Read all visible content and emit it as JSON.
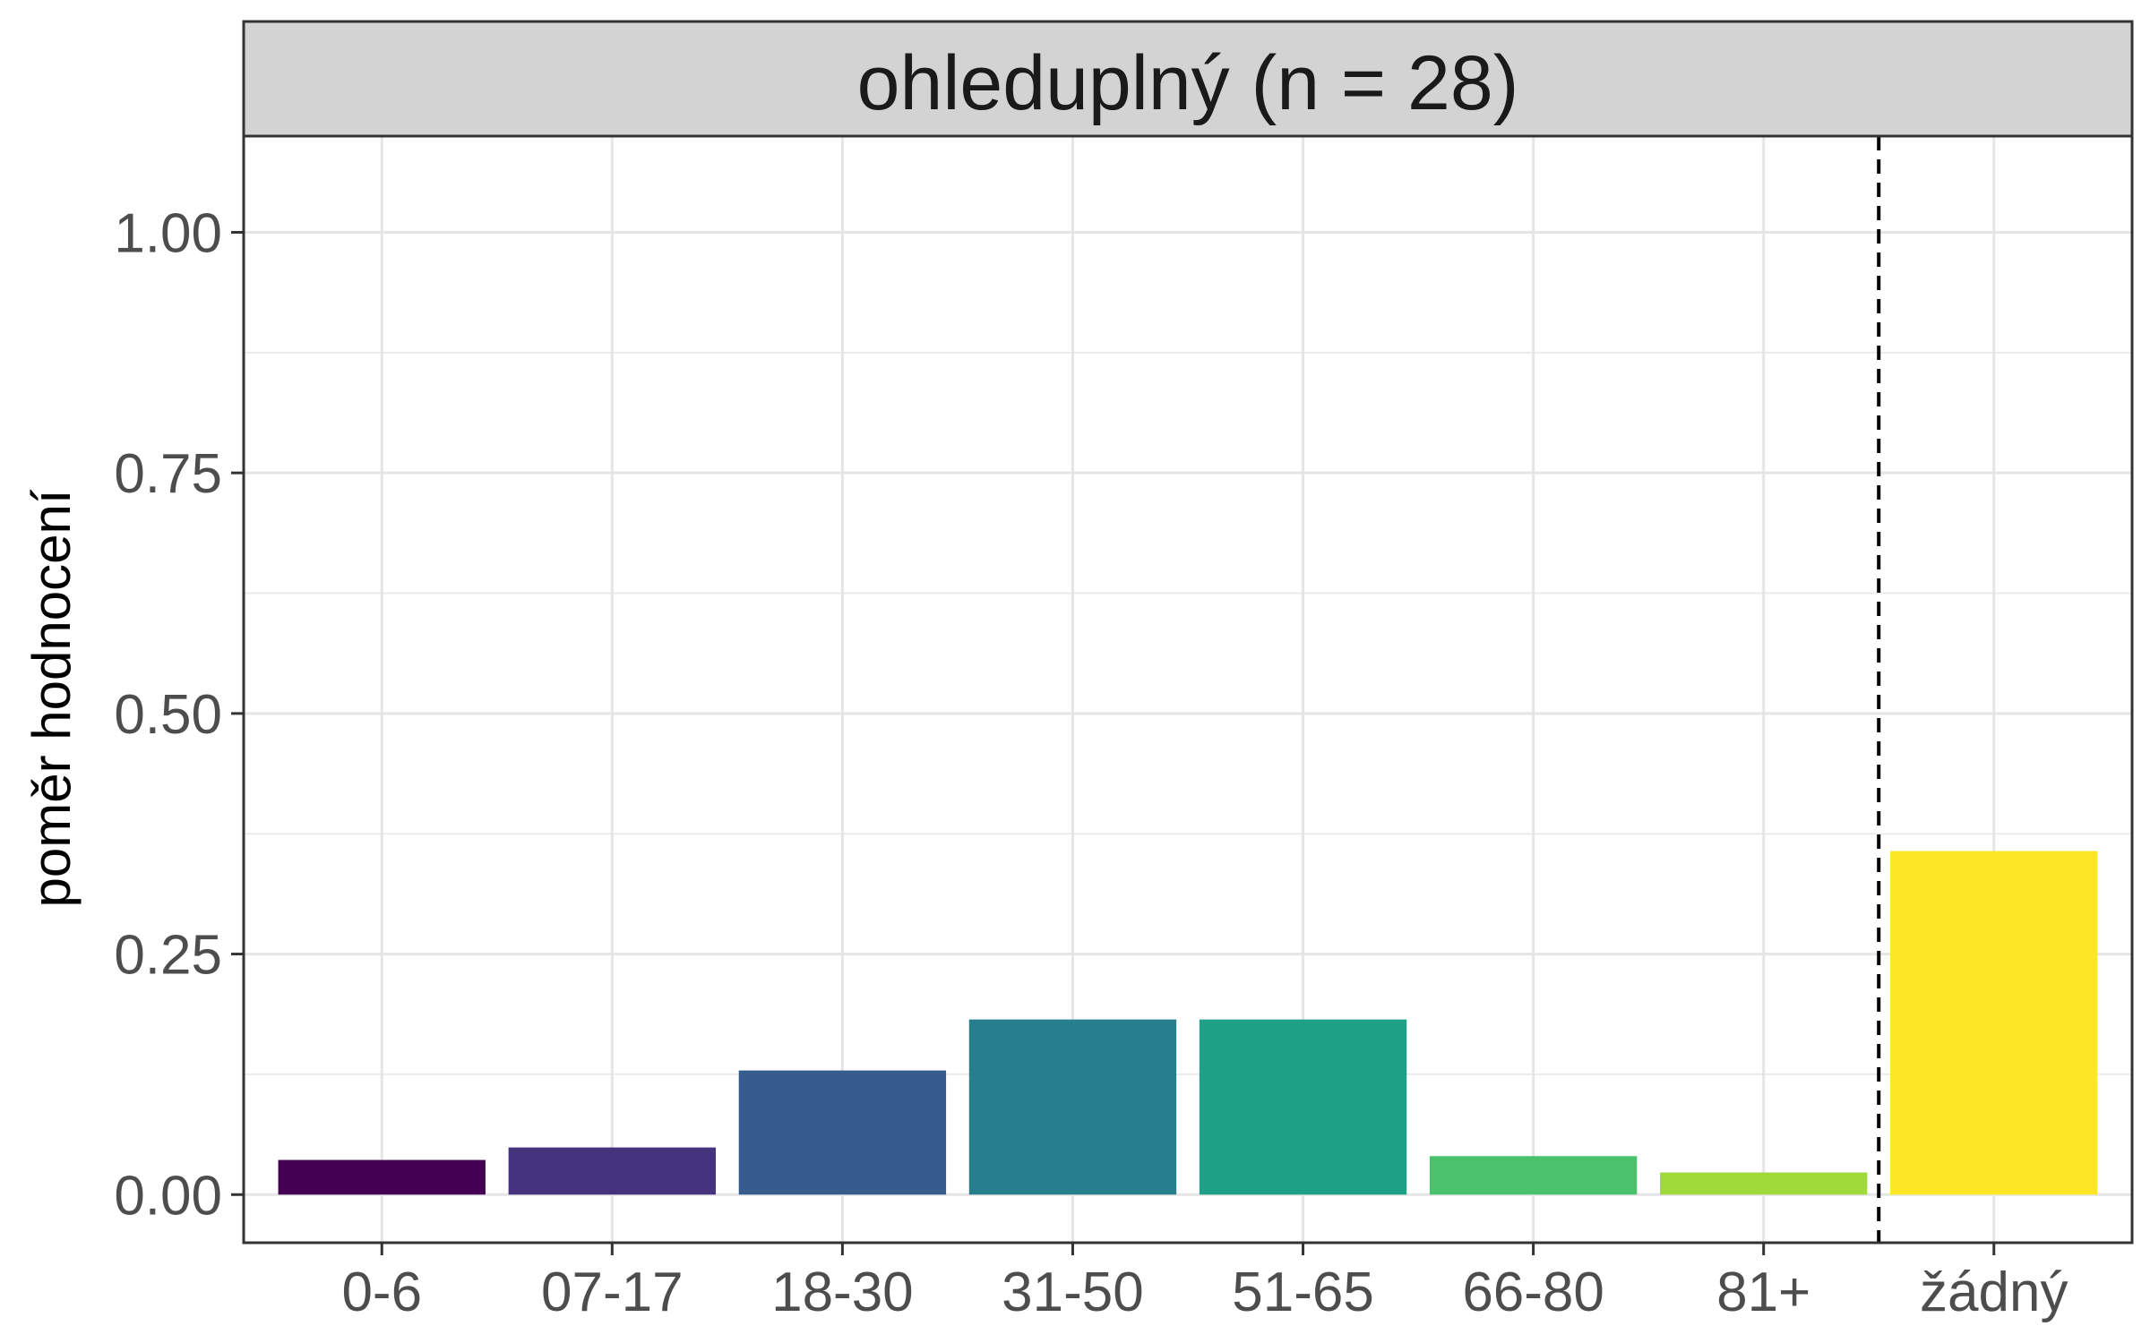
{
  "chart_data": {
    "type": "bar",
    "title": "ohleduplný (n = 28)",
    "ylabel": "poměr hodnocení",
    "xlabel": "",
    "categories": [
      "0-6",
      "07-17",
      "18-30",
      "31-50",
      "51-65",
      "66-80",
      "81+",
      "žádný"
    ],
    "values": [
      0.036,
      0.049,
      0.129,
      0.182,
      0.182,
      0.04,
      0.023,
      0.357
    ],
    "colors": [
      "#440154",
      "#46337E",
      "#365C8D",
      "#277F8E",
      "#1FA187",
      "#4AC16D",
      "#9FDA3A",
      "#FDE725"
    ],
    "ylim": [
      -0.05,
      1.1
    ],
    "yticks": [
      0.0,
      0.25,
      0.5,
      0.75,
      1.0
    ],
    "ytick_labels": [
      "0.00",
      "0.25",
      "0.50",
      "0.75",
      "1.00"
    ],
    "separator": "dashed vertical line between 81+ and žádný",
    "grid": true,
    "legend": "none"
  }
}
